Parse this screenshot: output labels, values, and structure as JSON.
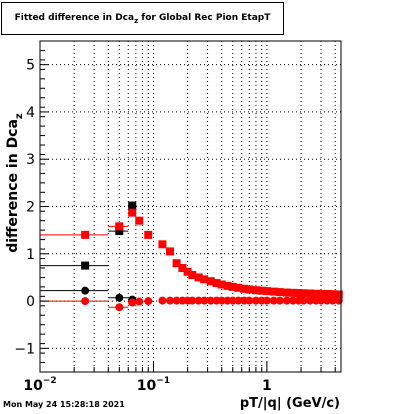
{
  "header": {
    "title_main": "Fitted difference in Dca",
    "title_sub": "z",
    "title_rest": " for Global Rec Pion EtapT"
  },
  "footer": {
    "timestamp": "Mon May 24 15:28:18 2021"
  },
  "chart_data": {
    "type": "scatter",
    "title": "Fitted difference in Dca_z for Global Rec Pion EtapT",
    "xlabel": "pT/|q| (GeV/c)",
    "ylabel": "difference in Dca",
    "ylabel_sub": "z",
    "x_scale": "log",
    "xlim": [
      0.01,
      4.5
    ],
    "ylim": [
      -1.5,
      5.5
    ],
    "grid": true,
    "y_ticks": [
      "−1",
      "0",
      "1",
      "2",
      "3",
      "4",
      "5"
    ],
    "y_tick_values": [
      -1,
      0,
      1,
      2,
      3,
      4,
      5
    ],
    "x_ticks": [
      {
        "value": 0.01,
        "base": "10",
        "exp": "−2"
      },
      {
        "value": 0.1,
        "base": "10",
        "exp": "−1"
      },
      {
        "value": 1,
        "base": "1",
        "exp": ""
      }
    ],
    "series": [
      {
        "marker": "square",
        "color": "#000000",
        "points": [
          {
            "x": 0.025,
            "y": 0.75,
            "xerr": [
              0.01,
              0.04
            ]
          },
          {
            "x": 0.05,
            "y": 1.48,
            "xerr": [
              0.04,
              0.06
            ]
          },
          {
            "x": 0.065,
            "y": 2.02,
            "xerr": [
              0.06,
              0.07
            ]
          }
        ]
      },
      {
        "marker": "circle",
        "color": "#000000",
        "points": [
          {
            "x": 0.025,
            "y": 0.22,
            "xerr": [
              0.01,
              0.04
            ]
          },
          {
            "x": 0.05,
            "y": 0.07,
            "xerr": [
              0.04,
              0.06
            ]
          },
          {
            "x": 0.065,
            "y": 0.03,
            "xerr": [
              0.06,
              0.07
            ]
          }
        ]
      },
      {
        "marker": "square",
        "color": "#ff0000",
        "points": [
          {
            "x": 0.025,
            "y": 1.4,
            "xerr": [
              0.01,
              0.04
            ]
          },
          {
            "x": 0.05,
            "y": 1.58,
            "xerr": [
              0.04,
              0.06
            ]
          },
          {
            "x": 0.065,
            "y": 1.87,
            "xerr": [
              0.06,
              0.07
            ]
          },
          {
            "x": 0.075,
            "y": 1.7
          },
          {
            "x": 0.09,
            "y": 1.4
          },
          {
            "x": 0.12,
            "y": 1.2
          },
          {
            "x": 0.14,
            "y": 1.05
          },
          {
            "x": 0.16,
            "y": 0.8
          },
          {
            "x": 0.18,
            "y": 0.7
          },
          {
            "x": 0.2,
            "y": 0.62
          },
          {
            "x": 0.22,
            "y": 0.55
          },
          {
            "x": 0.25,
            "y": 0.5
          },
          {
            "x": 0.28,
            "y": 0.46
          },
          {
            "x": 0.32,
            "y": 0.42
          },
          {
            "x": 0.36,
            "y": 0.38
          },
          {
            "x": 0.4,
            "y": 0.35
          },
          {
            "x": 0.45,
            "y": 0.32
          },
          {
            "x": 0.5,
            "y": 0.3
          },
          {
            "x": 0.56,
            "y": 0.28
          },
          {
            "x": 0.63,
            "y": 0.26
          },
          {
            "x": 0.7,
            "y": 0.245
          },
          {
            "x": 0.8,
            "y": 0.23
          },
          {
            "x": 0.9,
            "y": 0.22
          },
          {
            "x": 1.0,
            "y": 0.21
          },
          {
            "x": 1.15,
            "y": 0.2
          },
          {
            "x": 1.3,
            "y": 0.19
          },
          {
            "x": 1.5,
            "y": 0.18
          },
          {
            "x": 1.7,
            "y": 0.175
          },
          {
            "x": 1.9,
            "y": 0.17
          },
          {
            "x": 2.1,
            "y": 0.165
          },
          {
            "x": 2.4,
            "y": 0.16
          },
          {
            "x": 2.7,
            "y": 0.155
          },
          {
            "x": 3.0,
            "y": 0.15
          },
          {
            "x": 3.4,
            "y": 0.15
          },
          {
            "x": 3.8,
            "y": 0.145
          },
          {
            "x": 4.3,
            "y": 0.14
          }
        ]
      },
      {
        "marker": "circle",
        "color": "#ff0000",
        "points": [
          {
            "x": 0.025,
            "y": 0.0,
            "xerr": [
              0.01,
              0.04
            ]
          },
          {
            "x": 0.05,
            "y": -0.13,
            "xerr": [
              0.04,
              0.06
            ]
          },
          {
            "x": 0.065,
            "y": -0.03,
            "xerr": [
              0.06,
              0.07
            ]
          },
          {
            "x": 0.075,
            "y": -0.01
          },
          {
            "x": 0.09,
            "y": 0.0
          },
          {
            "x": 0.12,
            "y": 0.01
          },
          {
            "x": 0.14,
            "y": 0.01
          },
          {
            "x": 0.16,
            "y": 0.01
          },
          {
            "x": 0.18,
            "y": 0.01
          },
          {
            "x": 0.2,
            "y": 0.01
          },
          {
            "x": 0.22,
            "y": 0.01
          },
          {
            "x": 0.25,
            "y": 0.01
          },
          {
            "x": 0.28,
            "y": 0.01
          },
          {
            "x": 0.32,
            "y": 0.01
          },
          {
            "x": 0.36,
            "y": 0.01
          },
          {
            "x": 0.4,
            "y": 0.01
          },
          {
            "x": 0.45,
            "y": 0.01
          },
          {
            "x": 0.5,
            "y": 0.01
          },
          {
            "x": 0.56,
            "y": 0.01
          },
          {
            "x": 0.63,
            "y": 0.01
          },
          {
            "x": 0.7,
            "y": 0.01
          },
          {
            "x": 0.8,
            "y": 0.01
          },
          {
            "x": 0.9,
            "y": 0.01
          },
          {
            "x": 1.0,
            "y": 0.01
          },
          {
            "x": 1.15,
            "y": 0.01
          },
          {
            "x": 1.3,
            "y": 0.01
          },
          {
            "x": 1.5,
            "y": 0.01
          },
          {
            "x": 1.7,
            "y": 0.01
          },
          {
            "x": 1.9,
            "y": 0.01
          },
          {
            "x": 2.1,
            "y": 0.01
          },
          {
            "x": 2.4,
            "y": 0.01
          },
          {
            "x": 2.7,
            "y": 0.01
          },
          {
            "x": 3.0,
            "y": 0.01
          },
          {
            "x": 3.4,
            "y": 0.01
          },
          {
            "x": 3.8,
            "y": 0.01
          },
          {
            "x": 4.3,
            "y": 0.01
          }
        ]
      }
    ]
  }
}
